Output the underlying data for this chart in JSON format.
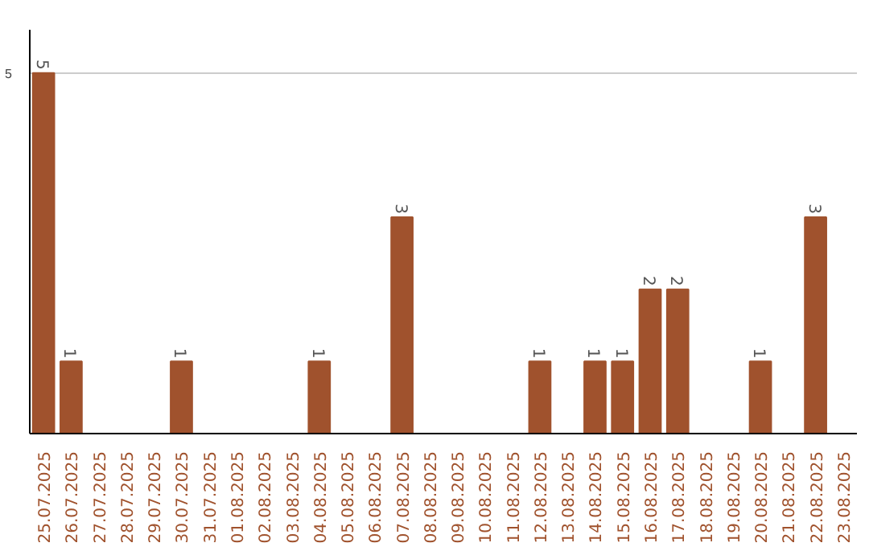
{
  "chart_data": {
    "type": "bar",
    "categories": [
      "25.07.2025",
      "26.07.2025",
      "27.07.2025",
      "28.07.2025",
      "29.07.2025",
      "30.07.2025",
      "31.07.2025",
      "01.08.2025",
      "02.08.2025",
      "03.08.2025",
      "04.08.2025",
      "05.08.2025",
      "06.08.2025",
      "07.08.2025",
      "08.08.2025",
      "09.08.2025",
      "10.08.2025",
      "11.08.2025",
      "12.08.2025",
      "13.08.2025",
      "14.08.2025",
      "15.08.2025",
      "16.08.2025",
      "17.08.2025",
      "18.08.2025",
      "19.08.2025",
      "20.08.2025",
      "21.08.2025",
      "22.08.2025",
      "23.08.2025"
    ],
    "values": [
      5,
      1,
      0,
      0,
      0,
      1,
      0,
      0,
      0,
      0,
      1,
      0,
      0,
      3,
      0,
      0,
      0,
      0,
      1,
      0,
      1,
      1,
      2,
      2,
      0,
      0,
      1,
      0,
      3,
      0
    ],
    "value_labels": [
      "5",
      "1",
      null,
      null,
      null,
      "1",
      null,
      null,
      null,
      null,
      "1",
      null,
      null,
      "3",
      null,
      null,
      null,
      null,
      "1",
      null,
      "1",
      "1",
      "2",
      "2",
      null,
      null,
      "1",
      null,
      "3",
      null
    ],
    "color": "#a0522d",
    "ylim": [
      0,
      5.6
    ],
    "yticks": [
      5
    ],
    "grid": "y"
  }
}
